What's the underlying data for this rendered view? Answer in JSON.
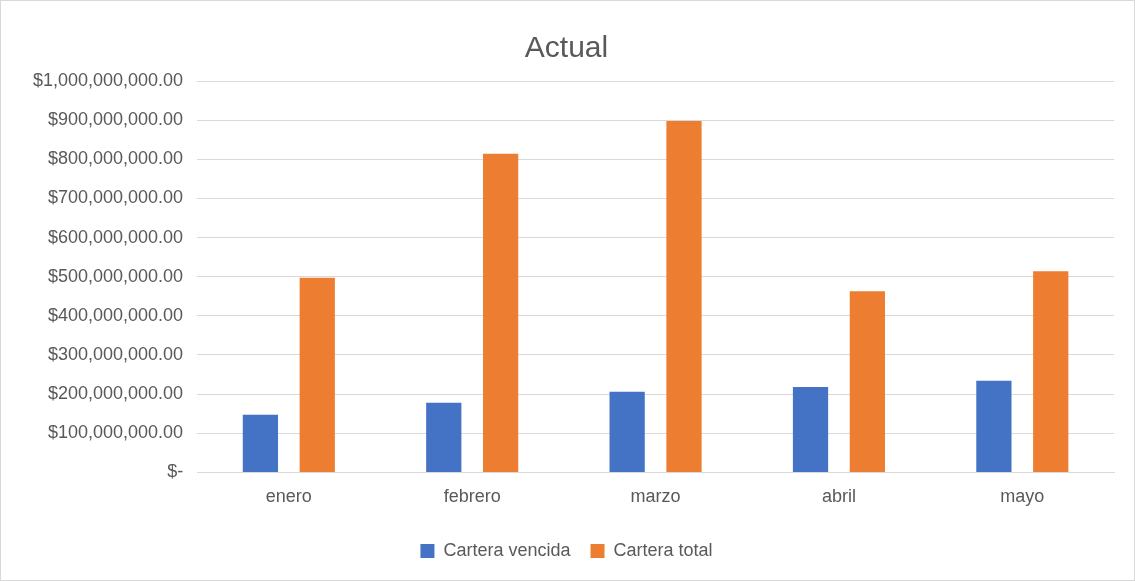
{
  "chart_data": {
    "type": "bar",
    "title": "Actual",
    "categories": [
      "enero",
      "febrero",
      "marzo",
      "abril",
      "mayo"
    ],
    "series": [
      {
        "name": "Cartera vencida",
        "color": "#4472c4",
        "values": [
          147000000,
          178000000,
          206000000,
          218000000,
          234000000
        ]
      },
      {
        "name": "Cartera total",
        "color": "#ed7d31",
        "values": [
          497000000,
          814000000,
          898000000,
          463000000,
          514000000
        ]
      }
    ],
    "ylim": [
      0,
      1000000000
    ],
    "yticks": [
      {
        "value": 0,
        "label": "$-"
      },
      {
        "value": 100000000,
        "label": "$100,000,000.00"
      },
      {
        "value": 200000000,
        "label": "$200,000,000.00"
      },
      {
        "value": 300000000,
        "label": "$300,000,000.00"
      },
      {
        "value": 400000000,
        "label": "$400,000,000.00"
      },
      {
        "value": 500000000,
        "label": "$500,000,000.00"
      },
      {
        "value": 600000000,
        "label": "$600,000,000.00"
      },
      {
        "value": 700000000,
        "label": "$700,000,000.00"
      },
      {
        "value": 800000000,
        "label": "$800,000,000.00"
      },
      {
        "value": 900000000,
        "label": "$900,000,000.00"
      },
      {
        "value": 1000000000,
        "label": "$1,000,000,000.00"
      }
    ],
    "grid": "y",
    "legend": "bottom"
  }
}
